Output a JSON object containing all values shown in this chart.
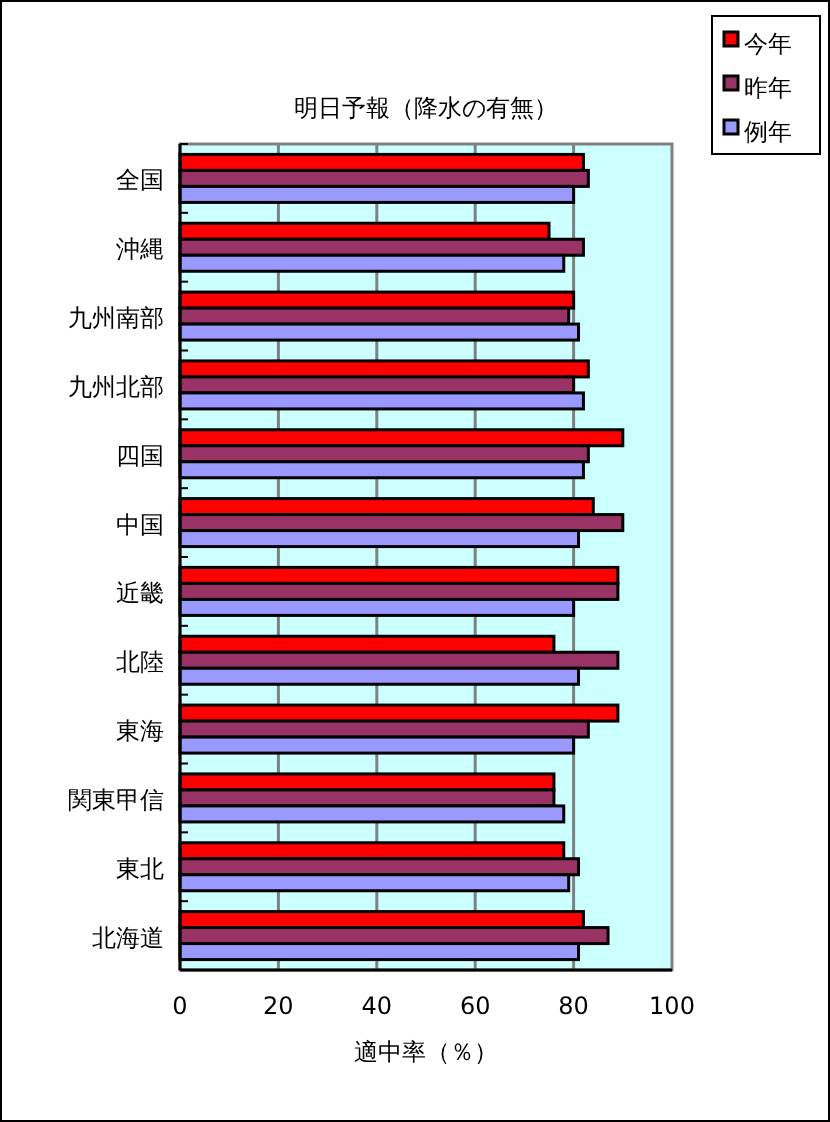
{
  "chart_data": {
    "type": "bar",
    "orientation": "horizontal",
    "title": "明日予報（降水の有無）",
    "xlabel": "適中率（％）",
    "categories": [
      "全国",
      "沖縄",
      "九州南部",
      "九州北部",
      "四国",
      "中国",
      "近畿",
      "北陸",
      "東海",
      "関東甲信",
      "東北",
      "北海道"
    ],
    "series": [
      {
        "name": "今年",
        "color": "#ff0000",
        "values": [
          82,
          75,
          80,
          83,
          90,
          84,
          89,
          76,
          89,
          76,
          78,
          82
        ]
      },
      {
        "name": "昨年",
        "color": "#993366",
        "values": [
          83,
          82,
          79,
          80,
          83,
          90,
          89,
          89,
          83,
          76,
          81,
          87
        ]
      },
      {
        "name": "例年",
        "color": "#9999ff",
        "values": [
          80,
          78,
          81,
          82,
          82,
          81,
          80,
          81,
          80,
          78,
          79,
          81
        ]
      }
    ],
    "xlim": [
      0,
      100
    ],
    "xticks": [
      0,
      20,
      40,
      60,
      80,
      100
    ],
    "grid": "x",
    "legend": "top right"
  }
}
